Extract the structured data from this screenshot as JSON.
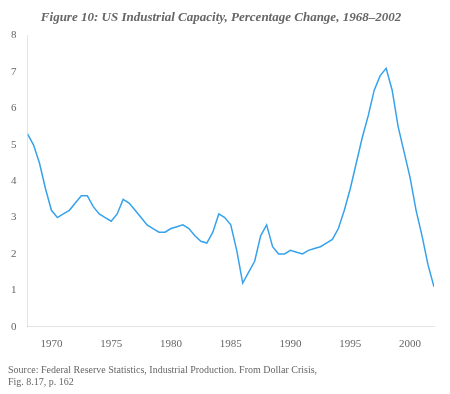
{
  "chart_data": {
    "type": "line",
    "title": "Figure 10: US Industrial Capacity, Percentage Change, 1968–2002",
    "annotations": [
      "Source: Federal Reserve Statistics, Industrial Production. From Dollar Crisis,",
      "Fig. 8.17, p. 162"
    ],
    "x": [
      1968.0,
      1968.5,
      1969.0,
      1969.5,
      1970.0,
      1970.5,
      1971.0,
      1971.5,
      1972.0,
      1972.5,
      1973.0,
      1973.5,
      1974.0,
      1974.5,
      1975.0,
      1975.5,
      1976.0,
      1976.5,
      1977.0,
      1977.5,
      1978.0,
      1978.5,
      1979.0,
      1979.5,
      1980.0,
      1980.5,
      1981.0,
      1981.5,
      1982.0,
      1982.5,
      1983.0,
      1983.5,
      1984.0,
      1984.5,
      1985.0,
      1985.5,
      1986.0,
      1986.5,
      1987.0,
      1987.5,
      1988.0,
      1988.5,
      1989.0,
      1989.5,
      1990.0,
      1990.5,
      1991.0,
      1991.5,
      1992.0,
      1992.5,
      1993.0,
      1993.5,
      1994.0,
      1994.5,
      1995.0,
      1995.5,
      1996.0,
      1996.5,
      1997.0,
      1997.5,
      1998.0,
      1998.5,
      1999.0,
      1999.5,
      2000.0,
      2000.5,
      2001.0,
      2001.5,
      2002.0
    ],
    "values": [
      5.3,
      5.0,
      4.5,
      3.8,
      3.2,
      3.0,
      3.1,
      3.2,
      3.4,
      3.6,
      3.6,
      3.3,
      3.1,
      3.0,
      2.9,
      3.1,
      3.5,
      3.4,
      3.2,
      3.0,
      2.8,
      2.7,
      2.6,
      2.6,
      2.7,
      2.75,
      2.8,
      2.7,
      2.5,
      2.35,
      2.3,
      2.6,
      3.1,
      3.0,
      2.8,
      2.1,
      1.2,
      1.5,
      1.8,
      2.5,
      2.8,
      2.2,
      2.0,
      2.0,
      2.1,
      2.05,
      2.0,
      2.1,
      2.15,
      2.2,
      2.3,
      2.4,
      2.7,
      3.2,
      3.8,
      4.5,
      5.2,
      5.8,
      6.5,
      6.9,
      7.1,
      6.5,
      5.5,
      4.8,
      4.1,
      3.2,
      2.5,
      1.7,
      1.1
    ],
    "xlim": [
      1968,
      2002
    ],
    "xticks": [
      1970,
      1975,
      1980,
      1985,
      1990,
      1995,
      2000
    ],
    "ylim": [
      0,
      8
    ],
    "yticks": [
      0,
      1,
      2,
      3,
      4,
      5,
      6,
      7,
      8
    ],
    "grid": false,
    "marker": "none"
  }
}
